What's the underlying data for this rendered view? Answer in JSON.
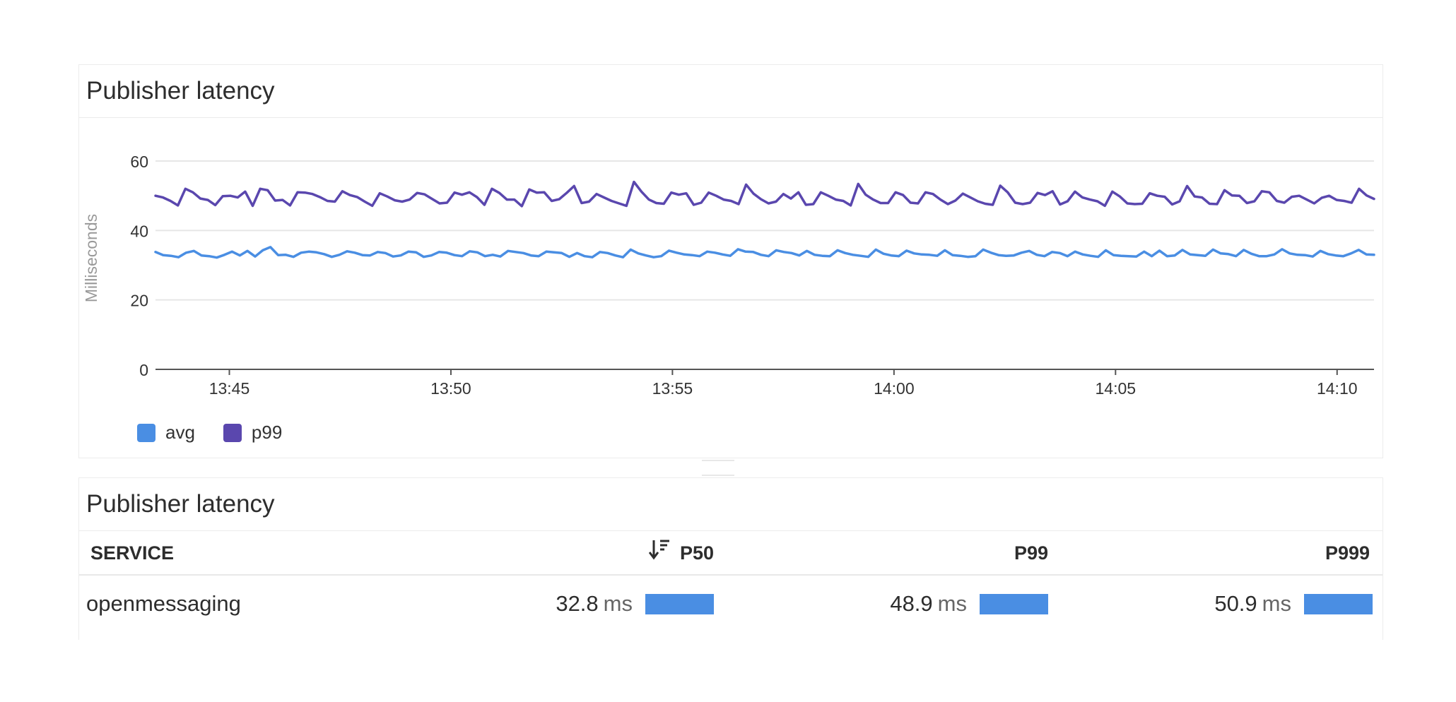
{
  "chart_panel": {
    "title": "Publisher latency"
  },
  "table_panel": {
    "title": "Publisher latency",
    "columns": {
      "service": "SERVICE",
      "p50": "P50",
      "p99": "P99",
      "p999": "P999"
    },
    "rows": [
      {
        "service": "openmessaging",
        "p50": "32.8",
        "p99": "48.9",
        "p999": "50.9",
        "unit": "ms",
        "p50_bar_fraction": 1.0,
        "p99_bar_fraction": 1.0,
        "p999_bar_fraction": 1.0
      }
    ],
    "bar_color": "#4a8ee3",
    "sort_icon": "sort-descending-icon"
  },
  "chart_data": {
    "type": "line",
    "title": "Publisher latency",
    "xlabel": "",
    "ylabel": "Milliseconds",
    "ylim": [
      0,
      60
    ],
    "yticks": [
      "0",
      "20",
      "40",
      "60"
    ],
    "xticks": [
      "13:45",
      "13:50",
      "13:55",
      "14:00",
      "14:05",
      "14:10"
    ],
    "x_range": [
      "13:43:20",
      "14:10:50"
    ],
    "grid": true,
    "legend": "bottom-left",
    "series": [
      {
        "name": "avg",
        "color": "#4a8ee3",
        "values": [
          33.8,
          32.9,
          32.7,
          32.3,
          33.6,
          34.1,
          32.8,
          32.6,
          32.2,
          33.0,
          33.9,
          32.8,
          34.1,
          32.5,
          34.3,
          35.2,
          32.9,
          33.0,
          32.4,
          33.6,
          33.9,
          33.7,
          33.2,
          32.4,
          33.0,
          34.0,
          33.6,
          32.9,
          32.8,
          33.8,
          33.5,
          32.5,
          32.8,
          33.9,
          33.7,
          32.4,
          32.8,
          33.8,
          33.6,
          32.9,
          32.6,
          34.0,
          33.7,
          32.6,
          33.0,
          32.5,
          34.1,
          33.8,
          33.5,
          32.8,
          32.6,
          33.9,
          33.7,
          33.5,
          32.4,
          33.5,
          32.6,
          32.3,
          33.8,
          33.5,
          32.8,
          32.3,
          34.5,
          33.4,
          32.8,
          32.3,
          32.6,
          34.2,
          33.6,
          33.1,
          32.9,
          32.6,
          33.9,
          33.6,
          33.1,
          32.7,
          34.6,
          33.9,
          33.8,
          33.0,
          32.6,
          34.3,
          33.8,
          33.5,
          32.8,
          34.1,
          33.0,
          32.7,
          32.6,
          34.3,
          33.5,
          33.0,
          32.7,
          32.4,
          34.5,
          33.3,
          32.8,
          32.6,
          34.2,
          33.4,
          33.1,
          33.0,
          32.7,
          34.3,
          32.9,
          32.7,
          32.4,
          32.6,
          34.5,
          33.6,
          32.9,
          32.7,
          32.8,
          33.6,
          34.1,
          33.0,
          32.6,
          33.8,
          33.5,
          32.6,
          33.9,
          33.1,
          32.7,
          32.4,
          34.3,
          32.9,
          32.7,
          32.6,
          32.5,
          33.9,
          32.6,
          34.2,
          32.6,
          32.8,
          34.4,
          33.1,
          32.9,
          32.7,
          34.5,
          33.4,
          33.2,
          32.6,
          34.4,
          33.3,
          32.6,
          32.6,
          33.1,
          34.6,
          33.4,
          33.0,
          32.9,
          32.5,
          34.1,
          33.2,
          32.8,
          32.6,
          33.4,
          34.4,
          33.1,
          33.0
        ]
      },
      {
        "name": "p99",
        "color": "#5a47ae",
        "values": [
          50.0,
          49.5,
          48.5,
          47.2,
          52.0,
          51.0,
          49.2,
          48.8,
          47.3,
          49.9,
          50.0,
          49.5,
          51.2,
          47.1,
          52.0,
          51.6,
          48.6,
          48.8,
          47.2,
          51.0,
          50.9,
          50.5,
          49.6,
          48.5,
          48.3,
          51.3,
          50.2,
          49.6,
          48.3,
          47.1,
          50.7,
          49.8,
          48.7,
          48.3,
          48.9,
          50.8,
          50.4,
          49.1,
          47.8,
          48.0,
          50.9,
          50.3,
          51.0,
          49.6,
          47.4,
          52.0,
          50.8,
          48.9,
          48.9,
          47.0,
          51.8,
          50.9,
          51.0,
          48.5,
          49.0,
          50.8,
          52.8,
          47.9,
          48.3,
          50.5,
          49.5,
          48.5,
          47.8,
          47.1,
          54.0,
          51.2,
          48.9,
          47.9,
          47.7,
          50.9,
          50.3,
          50.7,
          47.4,
          48.0,
          50.9,
          50.0,
          48.9,
          48.5,
          47.6,
          53.2,
          50.6,
          49.0,
          47.8,
          48.3,
          50.5,
          49.2,
          51.0,
          47.4,
          47.6,
          51.0,
          50.0,
          48.9,
          48.5,
          47.2,
          53.4,
          50.3,
          48.9,
          47.9,
          47.9,
          51.0,
          50.2,
          48.0,
          47.8,
          51.0,
          50.5,
          48.9,
          47.6,
          48.6,
          50.6,
          49.5,
          48.4,
          47.7,
          47.4,
          52.9,
          51.0,
          48.0,
          47.6,
          48.0,
          50.8,
          50.2,
          51.3,
          47.5,
          48.4,
          51.2,
          49.5,
          48.9,
          48.4,
          47.1,
          51.2,
          49.8,
          47.8,
          47.6,
          47.7,
          50.7,
          50.0,
          49.7,
          47.5,
          48.4,
          52.8,
          49.8,
          49.5,
          47.7,
          47.6,
          51.6,
          50.1,
          50.0,
          47.9,
          48.4,
          51.3,
          51.0,
          48.5,
          48.0,
          49.7,
          50.0,
          48.9,
          47.8,
          49.4,
          50.0,
          48.8,
          48.5,
          48.0,
          52.0,
          50.1,
          49.1
        ]
      }
    ]
  }
}
